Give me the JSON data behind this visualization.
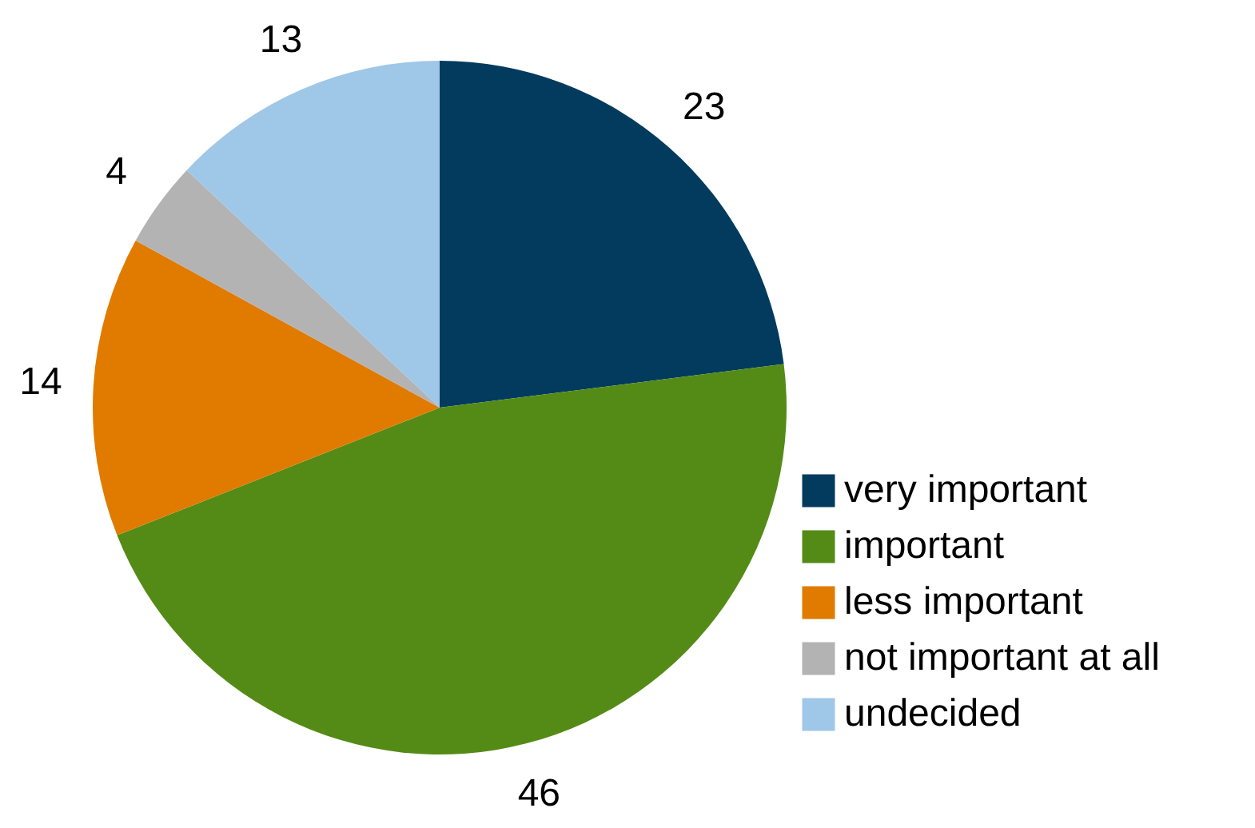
{
  "chart_data": {
    "type": "pie",
    "categories": [
      "very important",
      "important",
      "less important",
      "not important at all",
      "undecided"
    ],
    "values": [
      23,
      46,
      14,
      4,
      13
    ],
    "colors": [
      "#033b5e",
      "#548b16",
      "#e07b00",
      "#b3b3b3",
      "#9fc7e8"
    ],
    "data_labels": true,
    "legend": "bottom right"
  }
}
